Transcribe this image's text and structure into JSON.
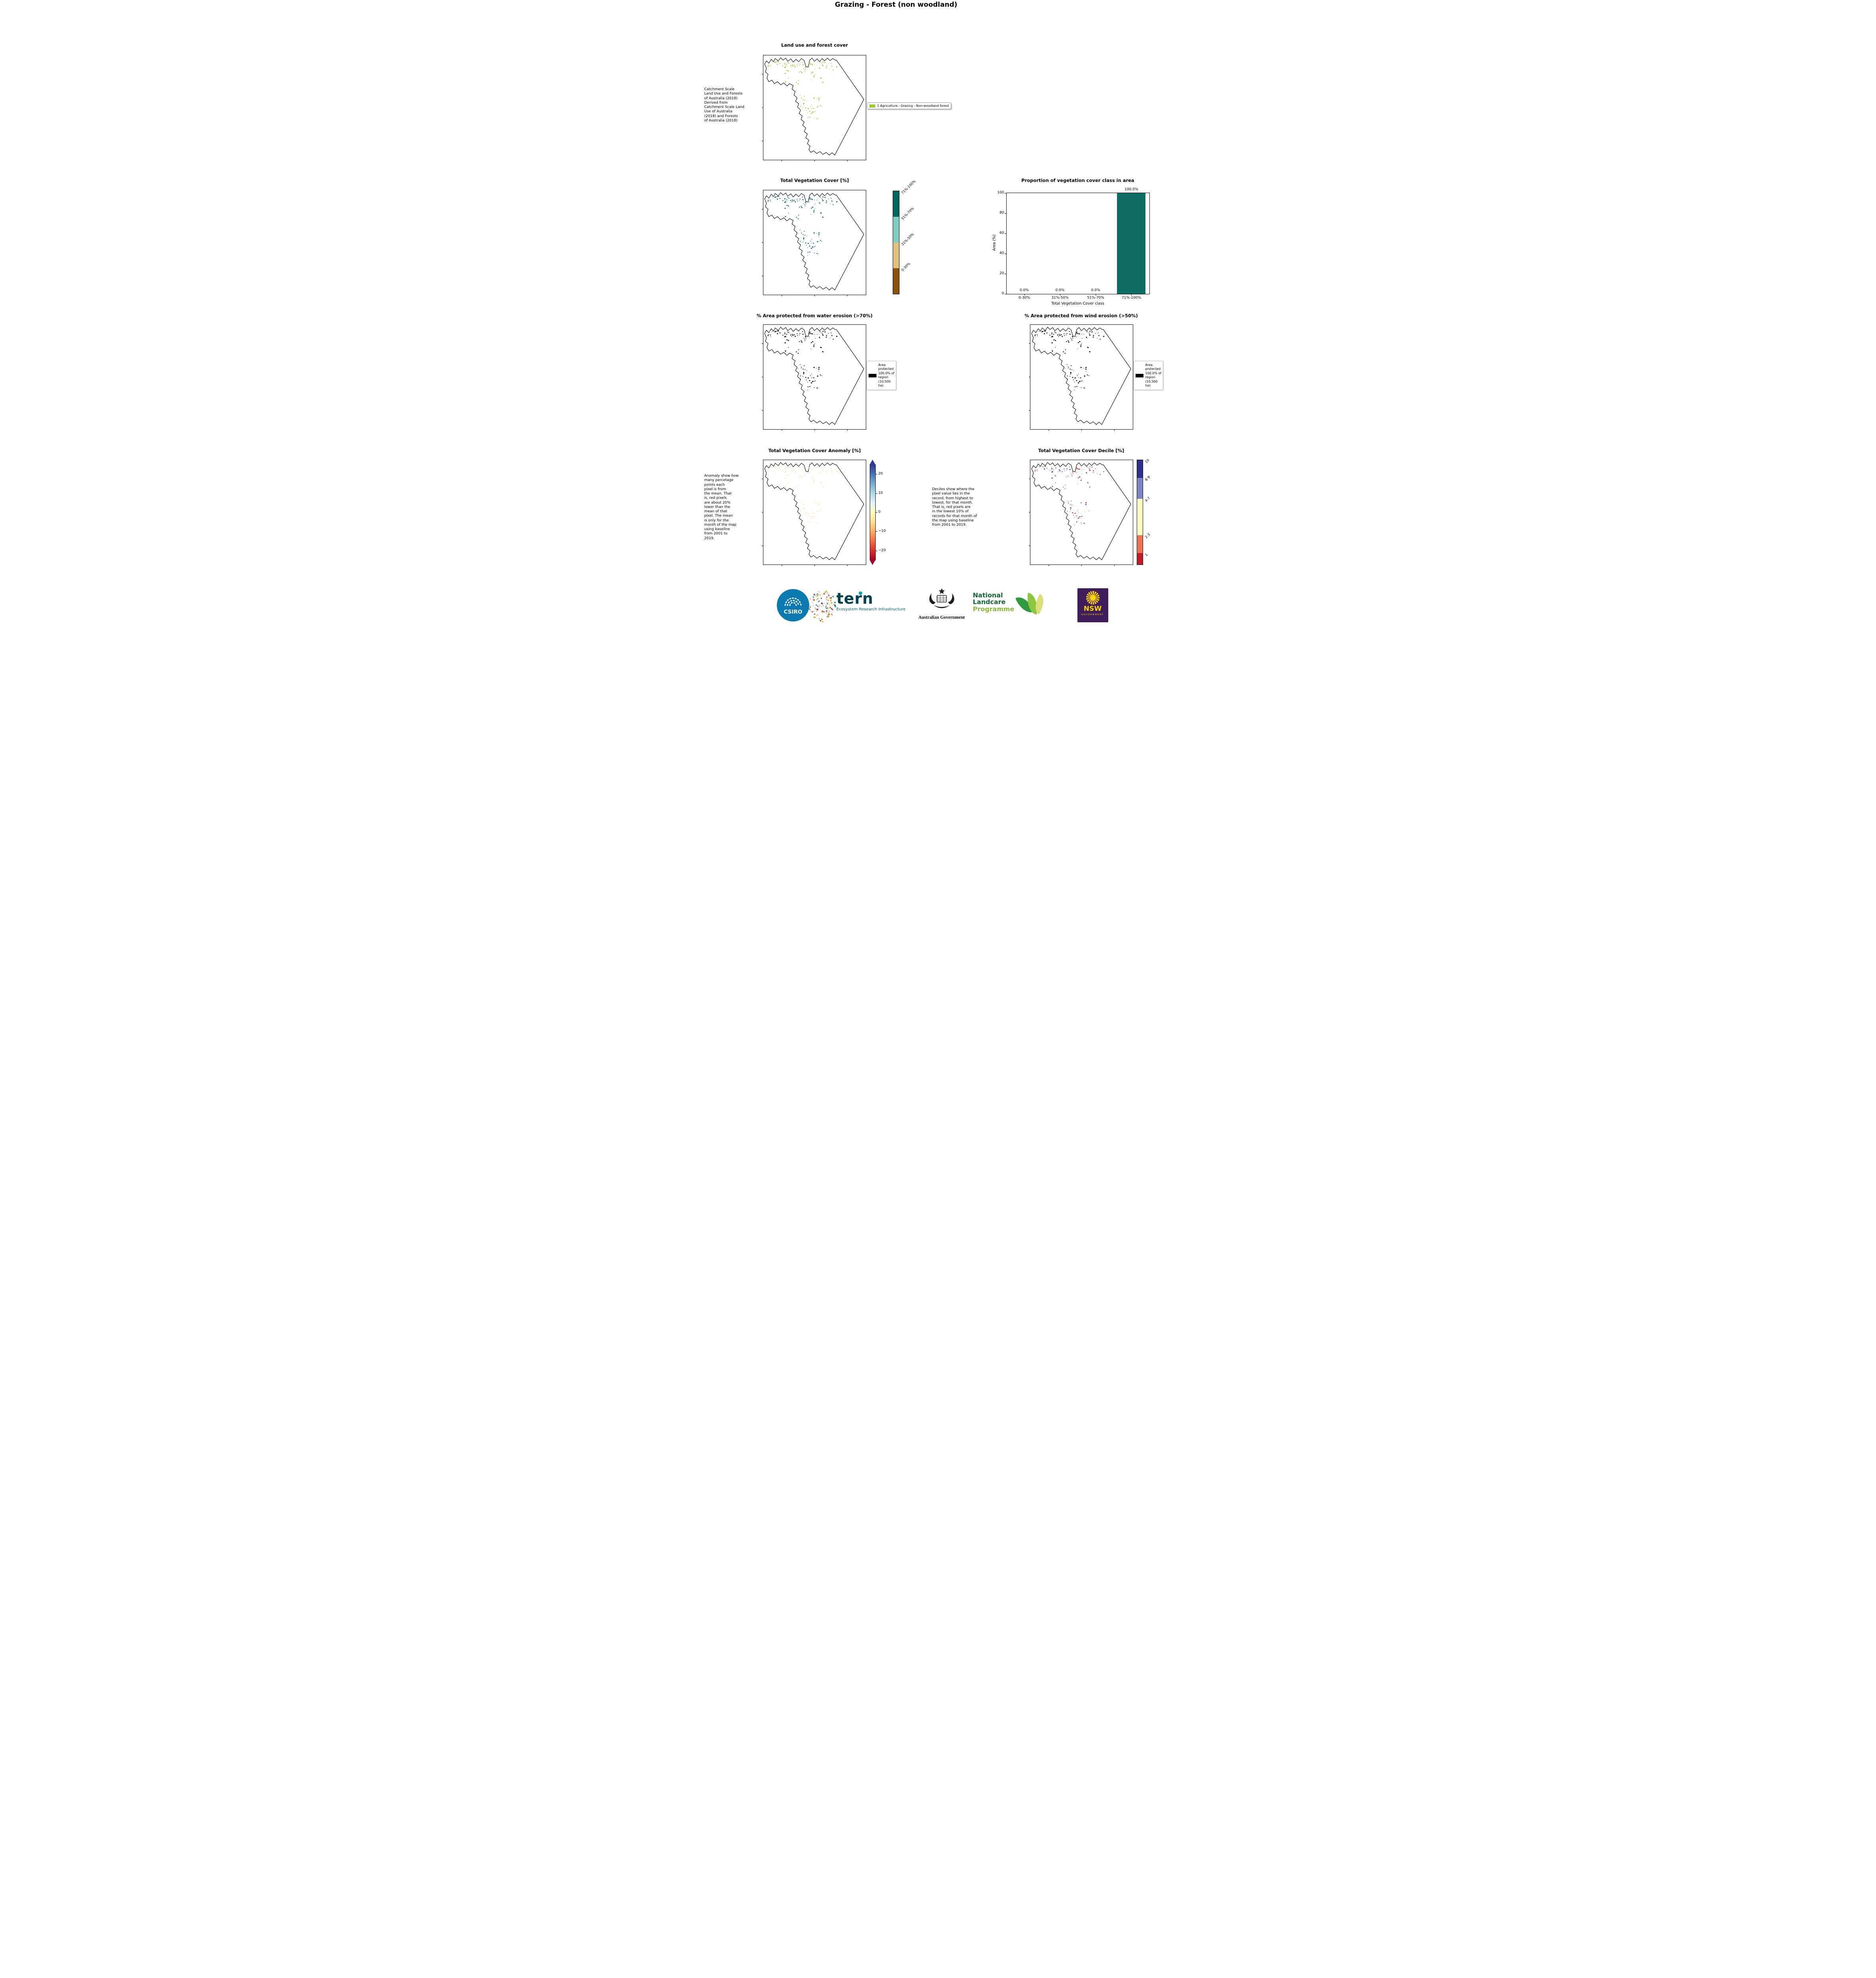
{
  "page": {
    "title": "Grazing - Forest (non woodland)"
  },
  "panels": {
    "landuse": {
      "title": "Land use and forest cover",
      "side_note": " Catchment Scale\nLand Use and Forests\nof Australia (2018)\nDerived from\nCatchment Scale Land\nUse of Australia\n(2018) and Forests\nof Australia (2018)",
      "legend_label": "1 Agriculture - Grazing - Non-woodland forest",
      "legend_color": "#9acd32"
    },
    "tvc": {
      "title": "Total Vegetation Cover [%]",
      "colorbar": [
        {
          "label": "71%-100%",
          "color": "#01665e",
          "frac": 0.25
        },
        {
          "label": "51%-70%",
          "color": "#80cdc1",
          "frac": 0.25
        },
        {
          "label": "31%-50%",
          "color": "#dfc27d",
          "frac": 0.25
        },
        {
          "label": "0-30%",
          "color": "#8c510a",
          "frac": 0.25
        }
      ]
    },
    "water": {
      "title": "% Area protected from water erosion (>70%)",
      "legend_text": "Area\nprotected\n100.0% of\nregion\n(10,500\nha)"
    },
    "wind": {
      "title": "% Area protected from wind erosion (>50%)",
      "legend_text": "Area\nprotected\n100.0% of\nregion\n(10,500\nha)"
    },
    "anomaly": {
      "title": "Total Vegetation Cover Anomaly [%]",
      "side_note": "Anomaly show how\nmany percetage\npoints each\npixel is from\nthe mean. That\nis, red pixels\nare about 20%\nlower than the\nmean of that\npixel. The mean\nis only for the\nmonth of the map\nusing baseline\nfrom 2001 to\n2019.",
      "colorbar_ticks": [
        {
          "label": "20",
          "pos": 0.135
        },
        {
          "label": "10",
          "pos": 0.318
        },
        {
          "label": "0",
          "pos": 0.5
        },
        {
          "label": "−10",
          "pos": 0.682
        },
        {
          "label": "−20",
          "pos": 0.865
        }
      ],
      "colorbar_colors": [
        "#313695",
        "#4575b4",
        "#74add1",
        "#abd9e9",
        "#e0f3f8",
        "#ffffbf",
        "#fee090",
        "#fdae61",
        "#f46d43",
        "#d73027",
        "#a50026"
      ]
    },
    "decile": {
      "title": "Total Vegetation Cover Decile [%]",
      "side_note": "Deciles show where the\npixel value lies in the\nrecord, from highest to\nlowest, for that month.\nThat is, red pixels are\nin the lowest 10% of\nrecords for that month of\nthe map using baseline\nfrom 2001 to 2019.",
      "colorbar": [
        {
          "label": "10",
          "color": "#2d2f8f",
          "frac": 0.17
        },
        {
          "label": "8-9",
          "color": "#7b85c4",
          "frac": 0.2
        },
        {
          "label": "4-7",
          "color": "#ffffc0",
          "frac": 0.35
        },
        {
          "label": "2-3",
          "color": "#f1714e",
          "frac": 0.17
        },
        {
          "label": "1",
          "color": "#c21b2a",
          "frac": 0.11
        }
      ]
    }
  },
  "chart_data": {
    "type": "bar",
    "title": "Proportion of vegetation cover class in area",
    "categories": [
      "0-30%",
      "31%-50%",
      "51%-70%",
      "71%-100%"
    ],
    "values": [
      0.0,
      0.0,
      0.0,
      100.0
    ],
    "bar_labels": [
      "0.0%",
      "0.0%",
      "0.0%",
      "100.0%"
    ],
    "xlabel": "Total Vegetation Cover class",
    "ylabel": "Area (%)",
    "ylim": [
      0,
      100
    ],
    "yticks": [
      0,
      20,
      40,
      60,
      80,
      100
    ],
    "bar_color": "#0d6d65",
    "grid": false,
    "legend_position": "none"
  },
  "maps": {
    "landuse": {
      "dot_colors": [
        "#9acd32"
      ]
    },
    "tvc": {
      "dot_colors": [
        "#01665e"
      ]
    },
    "water": {
      "dot_colors": [
        "#000000"
      ]
    },
    "wind": {
      "dot_colors": [
        "#000000"
      ]
    },
    "anomaly": {
      "dot_colors": [
        "#f2eebb",
        "#f7ecc0",
        "#efe9c8",
        "#fce9a8"
      ]
    },
    "decile": {
      "dot_colors": [
        "#2d2f8f",
        "#7b85c4",
        "#c21b2a",
        "#f1714e",
        "#2d2f8f",
        "#c21b2a",
        "#7b85c4",
        "#f6f2c3"
      ]
    }
  },
  "footer": {
    "csiro": {
      "label": "CSIRO",
      "color": "#0b7ab0"
    },
    "tern": {
      "name": "tern",
      "subtitle": "Ecosystem Research Infrastructure",
      "color": "#00424e",
      "sub_color": "#006672",
      "accent": "#00a7b5"
    },
    "aus_gov": {
      "label": "Australian Government"
    },
    "landcare": {
      "line1": "National",
      "line2": "Landcare",
      "line3": "Programme",
      "dark": "#146633",
      "light": "#8ab83c"
    },
    "nsw": {
      "name": "NSW",
      "sub": "GOVERNMENT",
      "bg": "#3f1d5a",
      "accent": "#ffd600"
    },
    "art_colors": [
      "#e5731f",
      "#d94f70",
      "#13a89e",
      "#f2b705",
      "#7ab648",
      "#5b3a8e",
      "#cccccc",
      "#c43b2a"
    ]
  }
}
